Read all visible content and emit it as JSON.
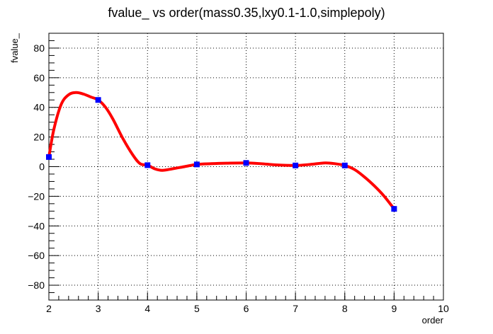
{
  "chart_data": {
    "type": "line",
    "title": "fvalue_ vs order(mass0.35,lxy0.1-1.0,simplepoly)",
    "xlabel": "order",
    "ylabel": "fvalue_",
    "xlim": [
      2,
      10
    ],
    "ylim": [
      -90,
      90
    ],
    "grid": true,
    "x_ticks": [
      2,
      3,
      4,
      5,
      6,
      7,
      8,
      9,
      10
    ],
    "y_ticks": [
      -80,
      -60,
      -40,
      -20,
      0,
      20,
      40,
      60,
      80
    ],
    "x_tick_labels": [
      "2",
      "3",
      "4",
      "5",
      "6",
      "7",
      "8",
      "9",
      "10"
    ],
    "y_tick_labels": [
      "−80",
      "−60",
      "−40",
      "−20",
      "0",
      "20",
      "40",
      "60",
      "80"
    ],
    "series": [
      {
        "name": "points",
        "color": "#0000ff",
        "marker": "square",
        "x": [
          2,
          3,
          4,
          5,
          6,
          7,
          8,
          9
        ],
        "y": [
          6.5,
          45,
          1,
          1.5,
          2.5,
          0.8,
          0.8,
          -28.5
        ]
      }
    ],
    "curve": {
      "name": "interpolation",
      "color": "#ff0000",
      "x": [
        2,
        2.1,
        2.25,
        2.4,
        2.55,
        2.7,
        2.85,
        3,
        3.15,
        3.3,
        3.5,
        3.7,
        3.85,
        4,
        4.15,
        4.3,
        4.5,
        4.75,
        5,
        5.3,
        5.6,
        6,
        6.3,
        6.6,
        7,
        7.3,
        7.6,
        7.8,
        8,
        8.2,
        8.4,
        8.6,
        8.8,
        9
      ],
      "y": [
        6.5,
        25,
        42,
        48.5,
        50,
        49,
        47,
        45,
        40,
        32,
        19,
        8,
        2,
        1,
        -1.5,
        -2.5,
        -1.5,
        0,
        1.5,
        2,
        2.3,
        2.5,
        2,
        1.2,
        0.8,
        1.5,
        2.5,
        2,
        0.8,
        -2,
        -7,
        -13,
        -20,
        -28.5
      ]
    }
  }
}
